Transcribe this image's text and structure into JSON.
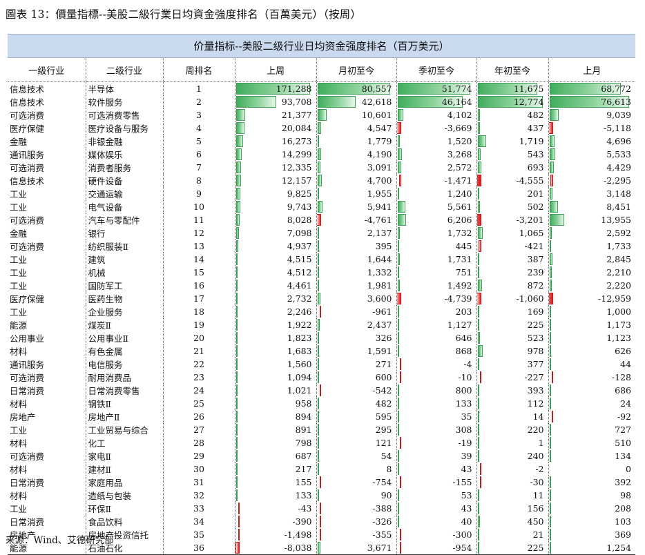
{
  "figure_title": "圖表 13：價量指標--美股二級行業日均資金強度排名（百萬美元）（按周）",
  "table_title": "价量指标--美股二级行业日均资金强度排名（百万美元）",
  "source": "来源：Wind、艾德研究部",
  "columns": [
    "一级行业",
    "二级行业",
    "周排名",
    "上周",
    "月初至今",
    "季初至今",
    "年初至今",
    "上月"
  ],
  "colors": {
    "header_bg": "#c9d9ee",
    "positive_bar": "#41ad5d",
    "negative_bar": "#d81c1c"
  },
  "rows": [
    [
      "信息技术",
      "半导体",
      "1",
      "171,288",
      "80,557",
      "51,774",
      "11,675",
      "68,772"
    ],
    [
      "信息技术",
      "软件服务",
      "2",
      "93,708",
      "42,618",
      "46,164",
      "12,774",
      "76,613"
    ],
    [
      "可选消费",
      "可选消费零售",
      "3",
      "21,377",
      "10,601",
      "4,102",
      "482",
      "9,039"
    ],
    [
      "医疗保健",
      "医疗设备与服务",
      "4",
      "20,084",
      "4,547",
      "-3,669",
      "437",
      "-5,118"
    ],
    [
      "金融",
      "非银金融",
      "5",
      "16,273",
      "1,779",
      "1,520",
      "1,719",
      "4,696"
    ],
    [
      "通讯服务",
      "媒体娱乐",
      "6",
      "14,299",
      "4,190",
      "3,268",
      "543",
      "5,533"
    ],
    [
      "可选消费",
      "消费者服务",
      "7",
      "12,335",
      "3,091",
      "2,572",
      "693",
      "4,429"
    ],
    [
      "信息技术",
      "硬件设备",
      "8",
      "12,157",
      "4,700",
      "-1,471",
      "-4,555",
      "-2,295"
    ],
    [
      "工业",
      "交通运输",
      "9",
      "9,825",
      "1,955",
      "1,240",
      "201",
      "3,148"
    ],
    [
      "工业",
      "电气设备",
      "10",
      "9,743",
      "5,941",
      "5,561",
      "502",
      "8,451"
    ],
    [
      "可选消费",
      "汽车与零配件",
      "11",
      "8,028",
      "-4,761",
      "6,206",
      "-3,201",
      "13,955"
    ],
    [
      "金融",
      "银行",
      "12",
      "7,098",
      "2,137",
      "1,732",
      "1,065",
      "2,592"
    ],
    [
      "可选消费",
      "纺织服装Ⅱ",
      "13",
      "4,937",
      "395",
      "445",
      "-421",
      "1,733"
    ],
    [
      "工业",
      "建筑",
      "14",
      "4,515",
      "1,644",
      "1,731",
      "387",
      "2,845"
    ],
    [
      "工业",
      "机械",
      "15",
      "4,512",
      "1,332",
      "751",
      "239",
      "2,210"
    ],
    [
      "工业",
      "国防军工",
      "16",
      "4,461",
      "1,981",
      "1,492",
      "872",
      "2,220"
    ],
    [
      "医疗保健",
      "医药生物",
      "17",
      "2,732",
      "3,600",
      "-4,739",
      "-1,060",
      "-12,959"
    ],
    [
      "工业",
      "企业服务",
      "18",
      "2,246",
      "-961",
      "203",
      "169",
      "1,000"
    ],
    [
      "能源",
      "煤炭Ⅱ",
      "19",
      "1,922",
      "2,437",
      "1,127",
      "225",
      "1,173"
    ],
    [
      "公用事业",
      "公用事业Ⅱ",
      "20",
      "1,823",
      "326",
      "646",
      "523",
      "1,123"
    ],
    [
      "材料",
      "有色金属",
      "21",
      "1,683",
      "1,591",
      "868",
      "978",
      "626"
    ],
    [
      "通讯服务",
      "电信服务",
      "22",
      "1,560",
      "271",
      "-4",
      "377",
      "44"
    ],
    [
      "可选消费",
      "耐用消费品",
      "23",
      "1,094",
      "600",
      "-10",
      "-227",
      "-128"
    ],
    [
      "日常消费",
      "日常消费零售",
      "24",
      "1,021",
      "-542",
      "800",
      "393",
      "686"
    ],
    [
      "材料",
      "钢铁Ⅱ",
      "25",
      "958",
      "482",
      "133",
      "112",
      "24"
    ],
    [
      "房地产",
      "房地产Ⅱ",
      "26",
      "894",
      "595",
      "35",
      "14",
      "-92"
    ],
    [
      "工业",
      "工业贸易与综合",
      "27",
      "891",
      "295",
      "308",
      "220",
      "727"
    ],
    [
      "材料",
      "化工",
      "28",
      "798",
      "121",
      "-19",
      "1",
      "510"
    ],
    [
      "可选消费",
      "家电Ⅱ",
      "29",
      "687",
      "54",
      "39",
      "240",
      "134"
    ],
    [
      "材料",
      "建材Ⅱ",
      "30",
      "217",
      "8",
      "43",
      "-2",
      "0"
    ],
    [
      "日常消费",
      "家庭用品",
      "31",
      "155",
      "-754",
      "-155",
      "-30",
      "392"
    ],
    [
      "材料",
      "造纸与包装",
      "32",
      "133",
      "90",
      "53",
      "11",
      "98"
    ],
    [
      "工业",
      "环保Ⅱ",
      "33",
      "-43",
      "-388",
      "43",
      "156",
      "208"
    ],
    [
      "日常消费",
      "食品饮料",
      "34",
      "-390",
      "-326",
      "40",
      "450",
      "103"
    ],
    [
      "房地产",
      "房地产投资信托",
      "35",
      "-1,498",
      "-355",
      "-300",
      "21",
      "369"
    ],
    [
      "能源",
      "石油石化",
      "36",
      "-8,038",
      "3,671",
      "-954",
      "225",
      "1,254"
    ]
  ]
}
